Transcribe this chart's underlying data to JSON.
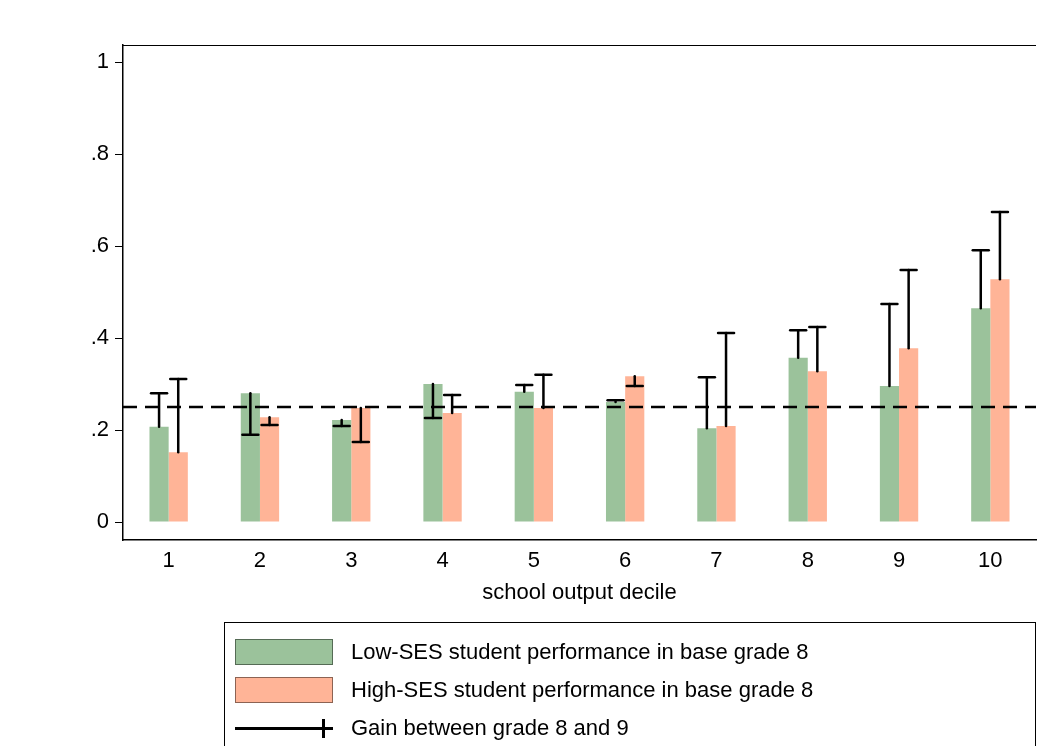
{
  "chart_data": {
    "type": "bar",
    "xlabel": "school output decile",
    "categories": [
      "1",
      "2",
      "3",
      "4",
      "5",
      "6",
      "7",
      "8",
      "9",
      "10"
    ],
    "series": [
      {
        "name": "Low-SES student performance in base grade 8",
        "color": "#9bc29b",
        "values": [
          0.207,
          0.28,
          0.222,
          0.3,
          0.283,
          0.261,
          0.204,
          0.357,
          0.296,
          0.465
        ],
        "errors": [
          [
            0.207,
            0.28
          ],
          [
            0.19,
            0.28
          ],
          [
            0.209,
            0.222
          ],
          [
            0.226,
            0.3
          ],
          [
            0.283,
            0.298
          ],
          [
            0.261,
            0.265
          ],
          [
            0.204,
            0.315
          ],
          [
            0.357,
            0.417
          ],
          [
            0.296,
            0.474
          ],
          [
            0.465,
            0.591
          ]
        ]
      },
      {
        "name": "High-SES student performance in base grade 8",
        "color": "#ffb497",
        "values": [
          0.152,
          0.228,
          0.248,
          0.237,
          0.248,
          0.317,
          0.209,
          0.328,
          0.378,
          0.528
        ],
        "errors": [
          [
            0.152,
            0.311
          ],
          [
            0.211,
            0.228
          ],
          [
            0.174,
            0.248
          ],
          [
            0.237,
            0.276
          ],
          [
            0.248,
            0.32
          ],
          [
            0.296,
            0.317
          ],
          [
            0.209,
            0.411
          ],
          [
            0.328,
            0.424
          ],
          [
            0.378,
            0.548
          ],
          [
            0.528,
            0.674
          ]
        ]
      }
    ],
    "annotations": [
      "Gain between grade 8 and 9"
    ],
    "ylim": [
      -0.039,
      1.037
    ],
    "yticks": [
      0,
      {
        "value": 0.2,
        "label": ".2"
      },
      {
        "value": 0.4,
        "label": ".4"
      },
      {
        "value": 0.6,
        "label": ".6"
      },
      {
        "value": 0.8,
        "label": ".8"
      },
      1
    ],
    "ref_lines": [
      {
        "axis": "y",
        "value": 0.25,
        "line_style": "dashed",
        "color": "#000000"
      }
    ],
    "grid": false,
    "legend": "bottom"
  }
}
